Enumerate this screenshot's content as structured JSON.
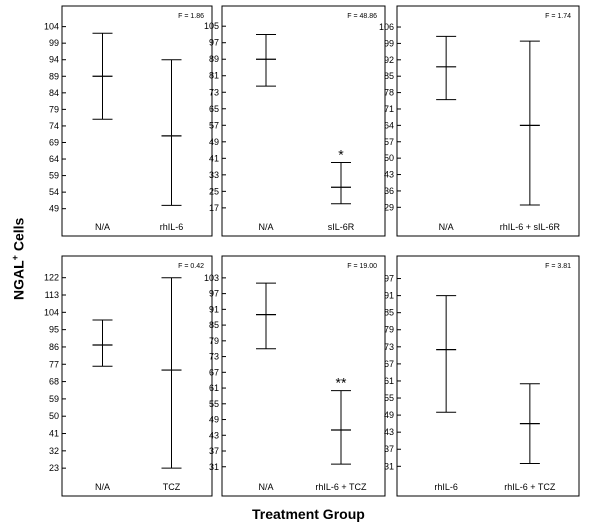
{
  "figure": {
    "ylabel": "NGAL",
    "ylabel_sup": "+",
    "ylabel_suffix": "Cells",
    "xlabel": "Treatment Group"
  },
  "chart_data": [
    {
      "type": "box",
      "panel": "top-left",
      "annotation": "F = 1.86",
      "categories": [
        "N/A",
        "rhIL-6"
      ],
      "yticks": [
        49,
        54,
        59,
        64,
        69,
        74,
        79,
        84,
        89,
        94,
        99,
        104
      ],
      "ylim": [
        48,
        106
      ],
      "series": [
        {
          "category": "N/A",
          "mean": 89,
          "low": 76,
          "high": 102,
          "mark": ""
        },
        {
          "category": "rhIL-6",
          "mean": 71,
          "low": 50,
          "high": 94,
          "mark": ""
        }
      ]
    },
    {
      "type": "box",
      "panel": "top-middle",
      "annotation": "F = 48.86",
      "categories": [
        "N/A",
        "sIL-6R"
      ],
      "yticks": [
        17,
        25,
        33,
        41,
        49,
        57,
        65,
        73,
        81,
        89,
        97,
        105
      ],
      "ylim": [
        15,
        108
      ],
      "series": [
        {
          "category": "N/A",
          "mean": 89,
          "low": 76,
          "high": 101,
          "mark": ""
        },
        {
          "category": "sIL-6R",
          "mean": 27,
          "low": 19,
          "high": 39,
          "mark": "*"
        }
      ]
    },
    {
      "type": "box",
      "panel": "top-right",
      "annotation": "F = 1.74",
      "categories": [
        "N/A",
        "rhIL-6 + sIL-6R"
      ],
      "yticks": [
        29,
        36,
        43,
        50,
        57,
        64,
        71,
        78,
        85,
        92,
        99,
        106
      ],
      "ylim": [
        27,
        109
      ],
      "series": [
        {
          "category": "N/A",
          "mean": 89,
          "low": 75,
          "high": 102,
          "mark": ""
        },
        {
          "category": "rhIL-6 + sIL-6R",
          "mean": 64,
          "low": 30,
          "high": 100,
          "mark": ""
        }
      ]
    },
    {
      "type": "box",
      "panel": "bottom-left",
      "annotation": "F = 0.42",
      "categories": [
        "N/A",
        "TCZ"
      ],
      "yticks": [
        23,
        32,
        41,
        50,
        59,
        68,
        77,
        86,
        95,
        104,
        113,
        122
      ],
      "ylim": [
        21,
        126
      ],
      "series": [
        {
          "category": "N/A",
          "mean": 87,
          "low": 76,
          "high": 100,
          "mark": ""
        },
        {
          "category": "TCZ",
          "mean": 74,
          "low": 23,
          "high": 122,
          "mark": ""
        }
      ]
    },
    {
      "type": "box",
      "panel": "bottom-middle",
      "annotation": "F = 19.00",
      "categories": [
        "N/A",
        "rhIL-6 + TCZ"
      ],
      "yticks": [
        31,
        37,
        43,
        49,
        55,
        61,
        67,
        73,
        79,
        85,
        91,
        97,
        103
      ],
      "ylim": [
        29,
        106
      ],
      "series": [
        {
          "category": "N/A",
          "mean": 89,
          "low": 76,
          "high": 101,
          "mark": ""
        },
        {
          "category": "rhIL-6 + TCZ",
          "mean": 45,
          "low": 32,
          "high": 60,
          "mark": "**"
        }
      ]
    },
    {
      "type": "box",
      "panel": "bottom-right",
      "annotation": "F = 3.81",
      "categories": [
        "rhIL-6",
        "rhIL-6 + TCZ"
      ],
      "yticks": [
        31,
        37,
        43,
        49,
        55,
        61,
        67,
        73,
        79,
        85,
        91,
        97
      ],
      "ylim": [
        29,
        100
      ],
      "series": [
        {
          "category": "rhIL-6",
          "mean": 72,
          "low": 50,
          "high": 91,
          "mark": ""
        },
        {
          "category": "rhIL-6 + TCZ",
          "mean": 46,
          "low": 32,
          "high": 60,
          "mark": ""
        }
      ]
    }
  ]
}
